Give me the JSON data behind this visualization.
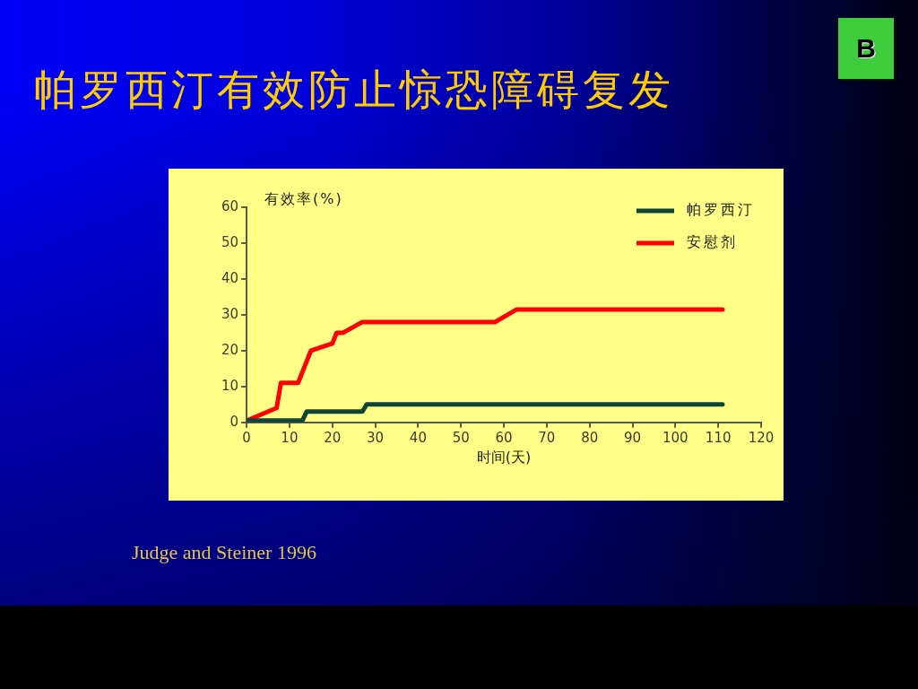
{
  "chart_data": {
    "type": "line",
    "title": "帕罗西汀有效防止惊恐障碍复发",
    "xlabel": "时间(天)",
    "ylabel": "有效率(%)",
    "xlim": [
      0,
      120
    ],
    "xticks": [
      0,
      10,
      20,
      30,
      40,
      50,
      60,
      70,
      80,
      90,
      100,
      110,
      120
    ],
    "ylim": [
      0,
      60
    ],
    "yticks": [
      0,
      10,
      20,
      30,
      40,
      50,
      60
    ],
    "legend": "top right",
    "marker": "none",
    "annotations": [
      "Judge and Steiner 1996",
      "B"
    ],
    "series": [
      {
        "name": "帕罗西汀",
        "color": "#0e4536",
        "x": [
          0,
          13,
          14,
          27,
          28,
          111
        ],
        "values": [
          0.5,
          0.5,
          3,
          3,
          5,
          5
        ]
      },
      {
        "name": "安慰剂",
        "color": "#ff0000",
        "x": [
          0,
          7,
          8,
          12,
          15,
          20,
          21,
          22.5,
          27,
          58,
          63,
          111
        ],
        "values": [
          0.5,
          4,
          11,
          11,
          20,
          22,
          25,
          25,
          28,
          28,
          31.5,
          31.5
        ]
      }
    ]
  }
}
